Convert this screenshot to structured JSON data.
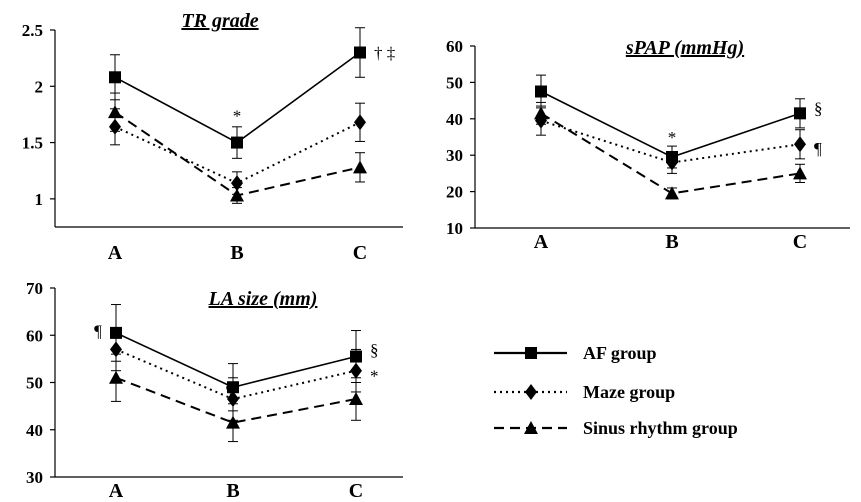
{
  "chart_data": [
    {
      "type": "line",
      "title": "TR grade",
      "categories": [
        "A",
        "B",
        "C"
      ],
      "yticks": [
        "1",
        "1.5",
        "2",
        "2.5"
      ],
      "ylim": [
        0.75,
        2.5
      ],
      "series": [
        {
          "name": "AF group",
          "values": [
            2.08,
            1.5,
            2.3
          ],
          "err": [
            0.2,
            0.14,
            0.22
          ]
        },
        {
          "name": "Maze group",
          "values": [
            1.64,
            1.14,
            1.68
          ],
          "err": [
            0.16,
            0.1,
            0.17
          ]
        },
        {
          "name": "Sinus rhythm group",
          "values": [
            1.77,
            1.03,
            1.28
          ],
          "err": [
            0.17,
            0.07,
            0.13
          ]
        }
      ],
      "annotations": [
        {
          "text": "*",
          "category": "B",
          "value": 1.74
        },
        {
          "text": "† ‡",
          "category": "C",
          "value": 2.3
        }
      ]
    },
    {
      "type": "line",
      "title": "sPAP (mmHg)",
      "categories": [
        "A",
        "B",
        "C"
      ],
      "yticks": [
        "10",
        "20",
        "30",
        "40",
        "50",
        "60"
      ],
      "ylim": [
        10,
        60
      ],
      "series": [
        {
          "name": "AF group",
          "values": [
            47.5,
            29.5,
            41.5
          ],
          "err": [
            4.5,
            3,
            4
          ]
        },
        {
          "name": "Maze group",
          "values": [
            39.5,
            28,
            33
          ],
          "err": [
            4,
            3,
            4
          ]
        },
        {
          "name": "Sinus rhythm group",
          "values": [
            41.5,
            19.5,
            25
          ],
          "err": [
            3,
            1.5,
            2.5
          ]
        }
      ],
      "annotations": [
        {
          "text": "*",
          "category": "B",
          "value": 35
        },
        {
          "text": "§",
          "category": "C",
          "value": 43
        },
        {
          "text": "¶",
          "category": "C",
          "value": 32
        }
      ]
    },
    {
      "type": "line",
      "title": "LA size (mm)",
      "categories": [
        "A",
        "B",
        "C"
      ],
      "yticks": [
        "30",
        "40",
        "50",
        "60",
        "70"
      ],
      "ylim": [
        30,
        70
      ],
      "series": [
        {
          "name": "AF group",
          "values": [
            60.5,
            49,
            55.5
          ],
          "err": [
            6,
            5,
            5.5
          ]
        },
        {
          "name": "Maze group",
          "values": [
            57,
            46.5,
            52.5
          ],
          "err": [
            4.5,
            4.5,
            4.5
          ]
        },
        {
          "name": "Sinus rhythm group",
          "values": [
            51,
            41.5,
            46.5
          ],
          "err": [
            5,
            4,
            4.5
          ]
        }
      ],
      "annotations": [
        {
          "text": "¶",
          "category": "A",
          "value": 61
        },
        {
          "text": "¶",
          "category": "B",
          "value": 48.5
        },
        {
          "text": "§",
          "category": "C",
          "value": 57
        },
        {
          "text": "*",
          "category": "C",
          "value": 51.5
        }
      ]
    }
  ],
  "legend": [
    {
      "label": "AF group",
      "marker": "square",
      "dash": "solid"
    },
    {
      "label": "Maze group",
      "marker": "diamond",
      "dash": "dotted"
    },
    {
      "label": "Sinus rhythm group",
      "marker": "triangle",
      "dash": "dashed"
    }
  ]
}
